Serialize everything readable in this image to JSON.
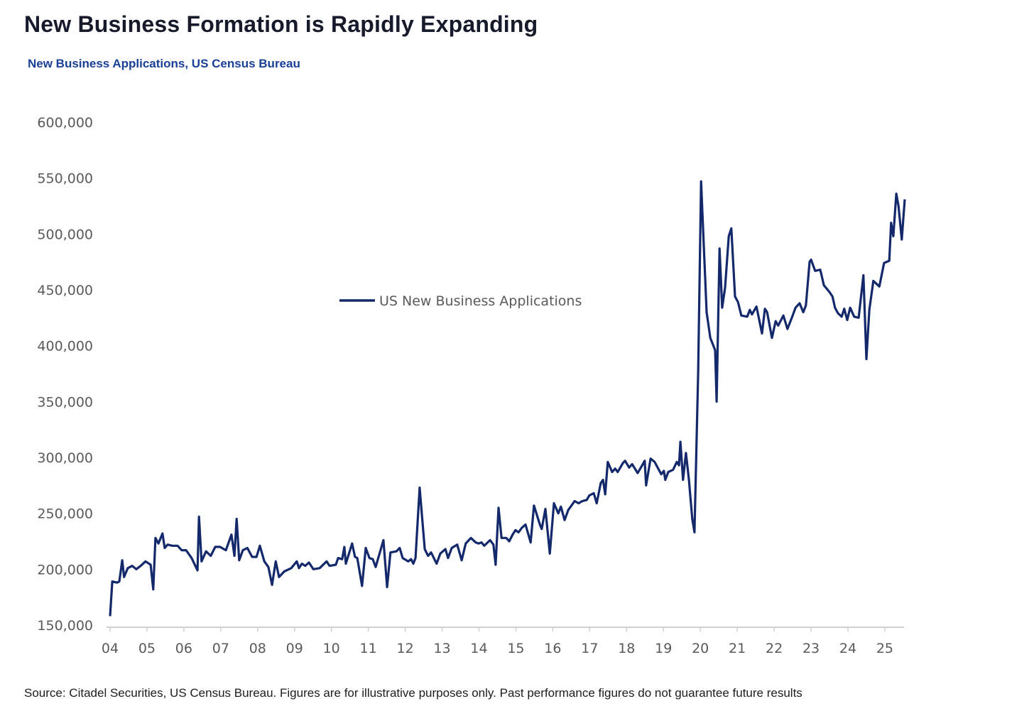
{
  "title": "New Business Formation is Rapidly Expanding",
  "subtitle": "New Business Applications, US Census Bureau",
  "source": "Source: Citadel Securities, US Census Bureau. Figures are for illustrative purposes only. Past performance figures do not guarantee future results",
  "colors": {
    "line": "#14296b",
    "axis": "#d0d0d0",
    "title": "#161a2b",
    "subtitle": "#1a3f96"
  },
  "chart_data": {
    "type": "line",
    "title": "New Business Applications, US Census Bureau",
    "xlabel": "",
    "ylabel": "",
    "ylim": [
      150000,
      600000
    ],
    "xlim": [
      2004,
      2025.55
    ],
    "grid": false,
    "legend": {
      "entries": [
        "US New Business Applications"
      ],
      "placement": "center"
    },
    "yticks": [
      150000,
      200000,
      250000,
      300000,
      350000,
      400000,
      450000,
      500000,
      550000,
      600000
    ],
    "ytick_labels": [
      "150,000",
      "200,000",
      "250,000",
      "300,000",
      "350,000",
      "400,000",
      "450,000",
      "500,000",
      "550,000",
      "600,000"
    ],
    "xticks": [
      2004,
      2005,
      2006,
      2007,
      2008,
      2009,
      2010,
      2011,
      2012,
      2013,
      2014,
      2015,
      2016,
      2017,
      2018,
      2019,
      2020,
      2021,
      2022,
      2023,
      2024,
      2025
    ],
    "xtick_labels": [
      "04",
      "05",
      "06",
      "07",
      "08",
      "09",
      "10",
      "11",
      "12",
      "13",
      "14",
      "15",
      "16",
      "17",
      "18",
      "19",
      "20",
      "21",
      "22",
      "23",
      "24",
      "25"
    ],
    "series": [
      {
        "name": "US New Business Applications",
        "x": [
          2004.0,
          2004.06,
          2004.19,
          2004.25,
          2004.33,
          2004.38,
          2004.48,
          2004.6,
          2004.71,
          2004.83,
          2004.96,
          2005.1,
          2005.17,
          2005.23,
          2005.31,
          2005.42,
          2005.48,
          2005.56,
          2005.69,
          2005.83,
          2005.94,
          2006.06,
          2006.21,
          2006.37,
          2006.41,
          2006.48,
          2006.6,
          2006.73,
          2006.85,
          2006.98,
          2007.14,
          2007.29,
          2007.37,
          2007.43,
          2007.5,
          2007.6,
          2007.72,
          2007.85,
          2007.97,
          2008.06,
          2008.18,
          2008.29,
          2008.39,
          2008.49,
          2008.58,
          2008.72,
          2008.91,
          2009.06,
          2009.12,
          2009.2,
          2009.29,
          2009.39,
          2009.51,
          2009.68,
          2009.87,
          2009.95,
          2010.12,
          2010.18,
          2010.29,
          2010.35,
          2010.39,
          2010.56,
          2010.64,
          2010.7,
          2010.83,
          2010.93,
          2011.03,
          2011.12,
          2011.2,
          2011.41,
          2011.51,
          2011.6,
          2011.76,
          2011.85,
          2011.93,
          2012.08,
          2012.16,
          2012.22,
          2012.28,
          2012.39,
          2012.53,
          2012.62,
          2012.7,
          2012.85,
          2012.95,
          2013.09,
          2013.16,
          2013.26,
          2013.41,
          2013.53,
          2013.64,
          2013.78,
          2013.91,
          2013.99,
          2014.07,
          2014.14,
          2014.3,
          2014.39,
          2014.45,
          2014.53,
          2014.61,
          2014.74,
          2014.82,
          2014.91,
          2014.99,
          2015.07,
          2015.16,
          2015.26,
          2015.4,
          2015.49,
          2015.65,
          2015.7,
          2015.8,
          2015.92,
          2016.03,
          2016.15,
          2016.22,
          2016.32,
          2016.42,
          2016.53,
          2016.59,
          2016.7,
          2016.8,
          2016.92,
          2016.99,
          2017.11,
          2017.19,
          2017.3,
          2017.36,
          2017.42,
          2017.49,
          2017.61,
          2017.69,
          2017.76,
          2017.9,
          2017.96,
          2018.07,
          2018.15,
          2018.3,
          2018.44,
          2018.49,
          2018.53,
          2018.65,
          2018.76,
          2018.94,
          2019.01,
          2019.05,
          2019.13,
          2019.26,
          2019.36,
          2019.42,
          2019.46,
          2019.53,
          2019.61,
          2019.69,
          2019.78,
          2019.84,
          2019.94,
          2020.02,
          2020.17,
          2020.27,
          2020.4,
          2020.44,
          2020.52,
          2020.59,
          2020.67,
          2020.77,
          2020.84,
          2020.94,
          2021.02,
          2021.11,
          2021.27,
          2021.34,
          2021.4,
          2021.52,
          2021.67,
          2021.75,
          2021.81,
          2021.94,
          2022.04,
          2022.11,
          2022.25,
          2022.36,
          2022.48,
          2022.58,
          2022.69,
          2022.79,
          2022.86,
          2022.96,
          2023.0,
          2023.11,
          2023.25,
          2023.35,
          2023.5,
          2023.58,
          2023.65,
          2023.73,
          2023.83,
          2023.9,
          2023.98,
          2024.06,
          2024.17,
          2024.29,
          2024.42,
          2024.5,
          2024.58,
          2024.69,
          2024.85,
          2024.98,
          2025.12,
          2025.17,
          2025.23,
          2025.31,
          2025.37,
          2025.46,
          2025.54
        ],
        "y": [
          158000,
          189000,
          188000,
          189000,
          208000,
          193000,
          201000,
          203000,
          200000,
          203000,
          207000,
          204000,
          182000,
          228000,
          223000,
          232000,
          219000,
          222000,
          221000,
          221000,
          217000,
          217000,
          210000,
          199000,
          247000,
          207000,
          216000,
          212000,
          220000,
          220000,
          217000,
          231000,
          212000,
          245000,
          208000,
          217000,
          219000,
          211000,
          211000,
          221000,
          207000,
          202000,
          186000,
          207000,
          193000,
          198000,
          201000,
          207000,
          201000,
          205000,
          203000,
          206000,
          200000,
          201000,
          207000,
          203000,
          204000,
          210000,
          209000,
          220000,
          205000,
          223000,
          211000,
          210000,
          185000,
          219000,
          210000,
          209000,
          202000,
          226000,
          184000,
          215000,
          216000,
          219000,
          210000,
          207000,
          209000,
          205000,
          210000,
          273000,
          218000,
          212000,
          215000,
          205000,
          214000,
          218000,
          210000,
          219000,
          222000,
          208000,
          223000,
          228000,
          224000,
          223000,
          224000,
          221000,
          226000,
          222000,
          204000,
          255000,
          228000,
          228000,
          225000,
          231000,
          235000,
          233000,
          237000,
          240000,
          224000,
          257000,
          240000,
          236000,
          254000,
          214000,
          259000,
          250000,
          256000,
          244000,
          253000,
          258000,
          261000,
          259000,
          261000,
          262000,
          266000,
          268000,
          259000,
          277000,
          280000,
          267000,
          296000,
          287000,
          290000,
          287000,
          295000,
          297000,
          291000,
          294000,
          286000,
          294000,
          297000,
          275000,
          299000,
          296000,
          285000,
          288000,
          280000,
          287000,
          289000,
          296000,
          293000,
          314000,
          280000,
          304000,
          280000,
          245000,
          233000,
          376000,
          547000,
          430000,
          407000,
          396000,
          350000,
          487000,
          434000,
          452000,
          498000,
          505000,
          444000,
          439000,
          427000,
          426000,
          432000,
          428000,
          435000,
          411000,
          433000,
          430000,
          407000,
          422000,
          418000,
          427000,
          415000,
          425000,
          434000,
          438000,
          430000,
          436000,
          475000,
          477000,
          467000,
          468000,
          454000,
          448000,
          444000,
          434000,
          429000,
          426000,
          433000,
          423000,
          434000,
          426000,
          425000,
          463000,
          388000,
          432000,
          458000,
          453000,
          474000,
          476000,
          510000,
          498000,
          536000,
          525000,
          495000,
          531000
        ]
      }
    ]
  }
}
